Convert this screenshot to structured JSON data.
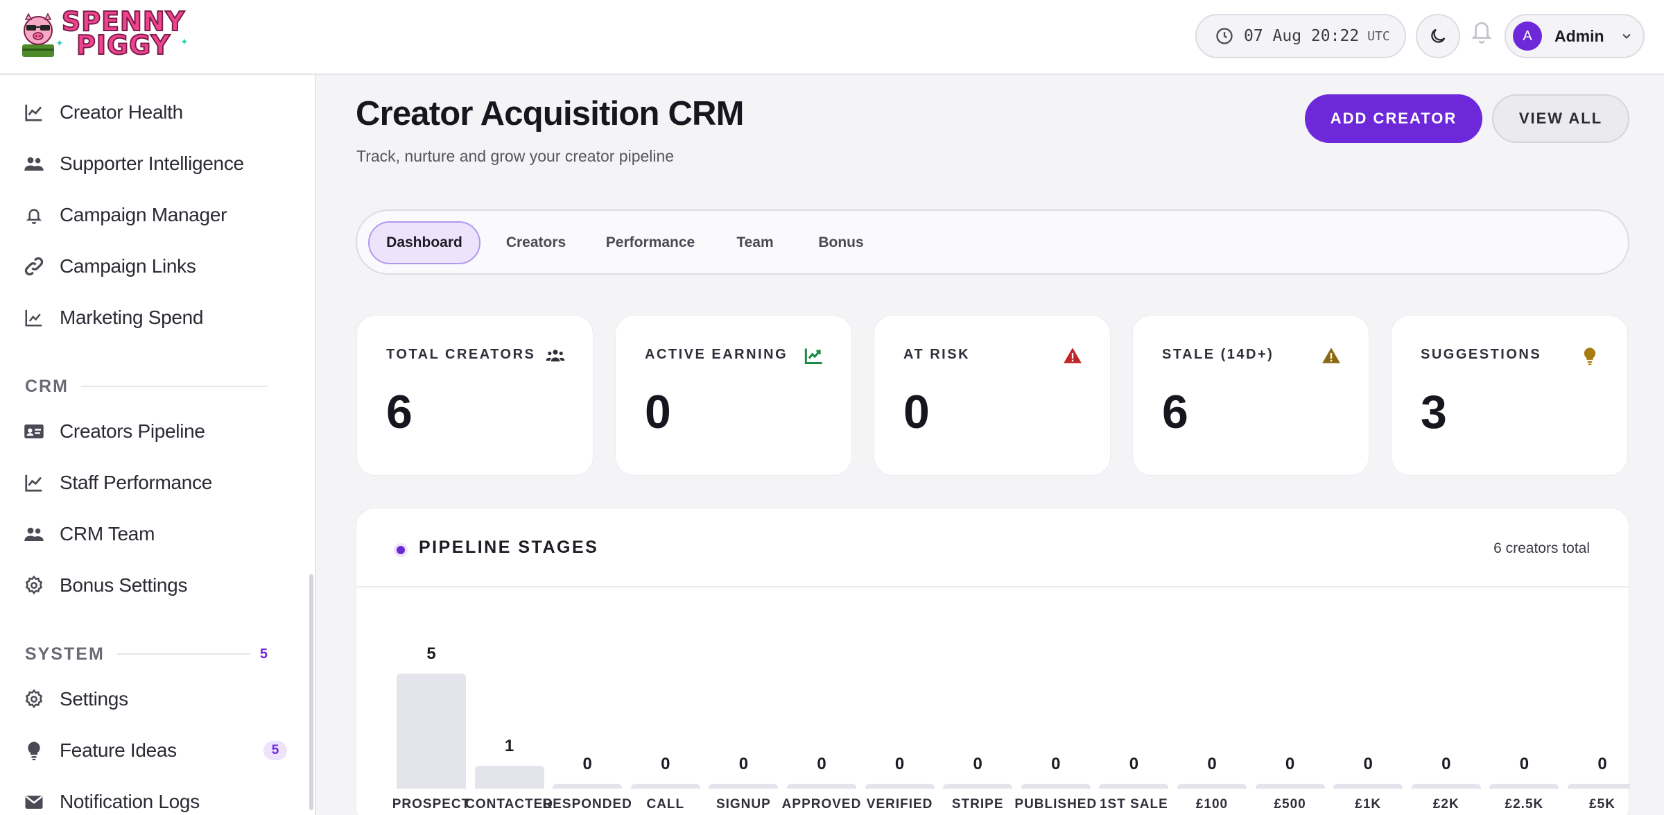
{
  "header": {
    "logo_line1": "SPENNY",
    "logo_line2": "PIGGY",
    "clock_time": "07 Aug 20:22",
    "clock_tz": "UTC",
    "user_initial": "A",
    "user_name": "Admin"
  },
  "sidebar": {
    "top_items": [
      {
        "label": "Creator Health",
        "icon": "chart-line-icon"
      },
      {
        "label": "Supporter Intelligence",
        "icon": "users-icon"
      },
      {
        "label": "Campaign Manager",
        "icon": "bell-icon"
      },
      {
        "label": "Campaign Links",
        "icon": "link-icon"
      },
      {
        "label": "Marketing Spend",
        "icon": "chart-icon"
      }
    ],
    "crm_section": "CRM",
    "crm_items": [
      {
        "label": "Creators Pipeline",
        "icon": "id-card-icon"
      },
      {
        "label": "Staff Performance",
        "icon": "chart-line-icon"
      },
      {
        "label": "CRM Team",
        "icon": "users-icon"
      },
      {
        "label": "Bonus Settings",
        "icon": "gear-icon"
      }
    ],
    "system_section": "SYSTEM",
    "system_count": "5",
    "system_items": [
      {
        "label": "Settings",
        "icon": "gear-icon"
      },
      {
        "label": "Feature Ideas",
        "icon": "lightbulb-icon",
        "badge": "5"
      },
      {
        "label": "Notification Logs",
        "icon": "mail-icon"
      }
    ]
  },
  "page": {
    "title": "Creator Acquisition CRM",
    "subtitle": "Track, nurture and grow your creator pipeline",
    "add_button": "ADD CREATOR",
    "view_all_button": "VIEW ALL"
  },
  "tabs": [
    "Dashboard",
    "Creators",
    "Performance",
    "Team",
    "Bonus"
  ],
  "active_tab": "Dashboard",
  "stats": [
    {
      "label": "TOTAL CREATORS",
      "value": "6",
      "icon": "users-icon",
      "color": "#2f2f3a"
    },
    {
      "label": "ACTIVE EARNING",
      "value": "0",
      "icon": "chart-up-icon",
      "color": "#1e8a4a"
    },
    {
      "label": "AT RISK",
      "value": "0",
      "icon": "warning-icon",
      "color": "#c02626"
    },
    {
      "label": "STALE (14D+)",
      "value": "6",
      "icon": "warning-icon",
      "color": "#8a6a12"
    },
    {
      "label": "SUGGESTIONS",
      "value": "3",
      "icon": "lightbulb-icon",
      "color": "#a87a10"
    }
  ],
  "pipeline": {
    "title": "PIPELINE STAGES",
    "total_text": "6 creators total"
  },
  "chart_data": {
    "type": "bar",
    "title": "PIPELINE STAGES",
    "categories": [
      "PROSPECT",
      "CONTACTED",
      "RESPONDED",
      "CALL",
      "SIGNUP",
      "APPROVED",
      "VERIFIED",
      "STRIPE",
      "PUBLISHED",
      "1ST SALE",
      "£100",
      "£500",
      "£1K",
      "£2K",
      "£2.5K",
      "£5K"
    ],
    "values": [
      5,
      1,
      0,
      0,
      0,
      0,
      0,
      0,
      0,
      0,
      0,
      0,
      0,
      0,
      0,
      0
    ],
    "bar_color": "#e4e5ec",
    "accent": "#6d28d9"
  }
}
